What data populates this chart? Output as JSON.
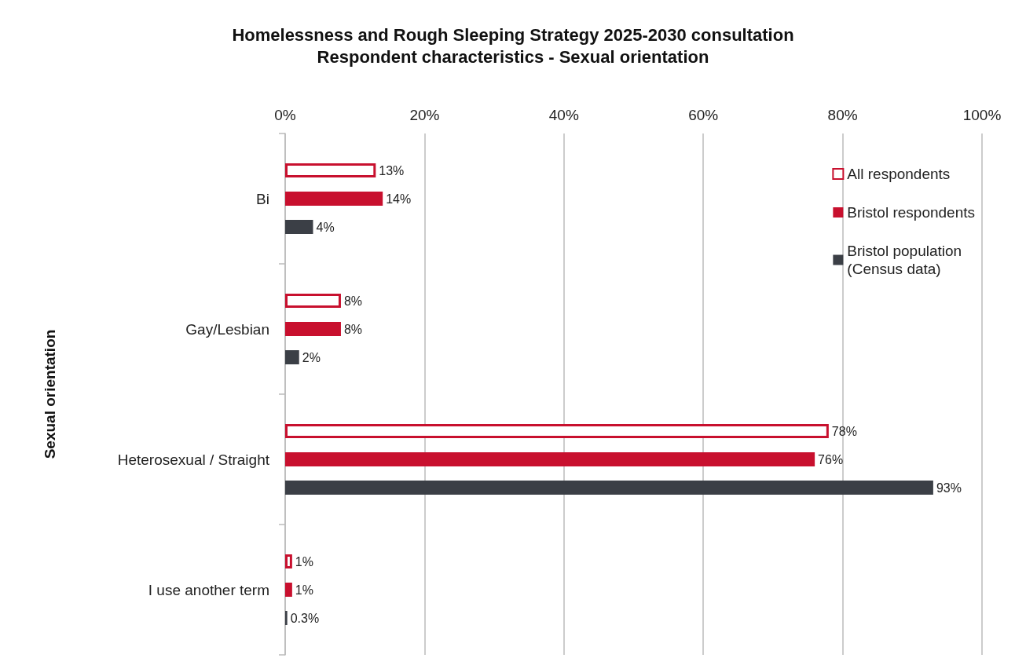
{
  "chart_data": {
    "type": "bar",
    "orientation": "horizontal",
    "title": "Homelessness and Rough Sleeping Strategy 2025-2030 consultation",
    "subtitle": "Respondent characteristics - Sexual orientation",
    "ylabel": "Sexual orientation",
    "categories": [
      "Bi",
      "Gay/Lesbian",
      "Heterosexual / Straight",
      "I use another term"
    ],
    "series": [
      {
        "name": "All respondents",
        "color": "#c8102e",
        "values": [
          13,
          8,
          78,
          1
        ],
        "value_labels": [
          "13%",
          "8%",
          "78%",
          "1%"
        ]
      },
      {
        "name": "Bristol respondents",
        "color": "#c8102e",
        "values": [
          14,
          8,
          76,
          1
        ],
        "value_labels": [
          "14%",
          "8%",
          "76%",
          "1%"
        ]
      },
      {
        "name": "Bristol population\n(Census data)",
        "color": "#3b3f46",
        "values": [
          4,
          2,
          93,
          0.3
        ],
        "value_labels": [
          "4%",
          "2%",
          "93%",
          "0.3%"
        ]
      }
    ],
    "xlim": [
      0,
      100
    ],
    "xticks": [
      {
        "value": 0,
        "label": "0%"
      },
      {
        "value": 20,
        "label": "20%"
      },
      {
        "value": 40,
        "label": "40%"
      },
      {
        "value": 60,
        "label": "60%"
      },
      {
        "value": 80,
        "label": "80%"
      },
      {
        "value": 100,
        "label": "100%"
      }
    ],
    "grid": "x",
    "legend": "top right"
  }
}
